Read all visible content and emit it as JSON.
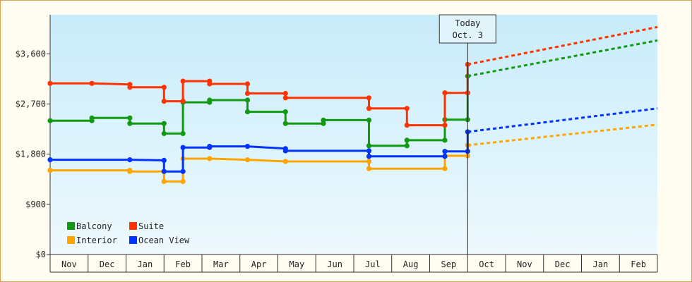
{
  "chart_data": {
    "type": "line",
    "title": "",
    "xlabel": "",
    "ylabel": "",
    "yticks": [
      "$0",
      "$900",
      "$1,800",
      "$2,700",
      "$3,600"
    ],
    "ylim": [
      0,
      4300
    ],
    "months": [
      "Nov",
      "Dec",
      "Jan",
      "Feb",
      "Mar",
      "Apr",
      "May",
      "Jun",
      "Jul",
      "Aug",
      "Sep",
      "Oct",
      "Nov",
      "Dec",
      "Jan",
      "Feb"
    ],
    "today": {
      "label": "Today",
      "date": "Oct. 3",
      "x": 11.0
    },
    "legend": {
      "placement": "bottom-left"
    },
    "colors": {
      "Balcony": "#119911",
      "Suite": "#ff3300",
      "Interior": "#ffa500",
      "Ocean View": "#0033ff",
      "background_top": "#c8ecfa",
      "background_bottom": "#eef9fd"
    },
    "series": [
      {
        "name": "Balcony",
        "color": "#119911",
        "points": [
          [
            0.0,
            2400
          ],
          [
            1.1,
            2400
          ],
          [
            1.1,
            2450
          ],
          [
            2.1,
            2450
          ],
          [
            2.1,
            2350
          ],
          [
            3.0,
            2350
          ],
          [
            3.0,
            2170
          ],
          [
            3.5,
            2170
          ],
          [
            3.5,
            2730
          ],
          [
            4.2,
            2730
          ],
          [
            4.2,
            2770
          ],
          [
            5.2,
            2770
          ],
          [
            5.2,
            2560
          ],
          [
            6.2,
            2560
          ],
          [
            6.2,
            2350
          ],
          [
            7.2,
            2350
          ],
          [
            7.2,
            2410
          ],
          [
            8.4,
            2410
          ],
          [
            8.4,
            1950
          ],
          [
            9.4,
            1950
          ],
          [
            9.4,
            2050
          ],
          [
            10.4,
            2050
          ],
          [
            10.4,
            2420
          ],
          [
            11.0,
            2420
          ],
          [
            11.0,
            3200
          ]
        ],
        "forecast": [
          [
            11.0,
            3200
          ],
          [
            16.0,
            3840
          ]
        ]
      },
      {
        "name": "Suite",
        "color": "#ff3300",
        "points": [
          [
            0.0,
            3070
          ],
          [
            1.1,
            3070
          ],
          [
            2.1,
            3050
          ],
          [
            2.1,
            3000
          ],
          [
            3.0,
            3000
          ],
          [
            3.0,
            2750
          ],
          [
            3.5,
            2750
          ],
          [
            3.5,
            3110
          ],
          [
            4.2,
            3110
          ],
          [
            4.2,
            3060
          ],
          [
            5.2,
            3060
          ],
          [
            5.2,
            2890
          ],
          [
            6.2,
            2890
          ],
          [
            6.2,
            2810
          ],
          [
            8.4,
            2810
          ],
          [
            8.4,
            2620
          ],
          [
            9.4,
            2620
          ],
          [
            9.4,
            2320
          ],
          [
            10.4,
            2320
          ],
          [
            10.4,
            2900
          ],
          [
            11.0,
            2900
          ],
          [
            11.0,
            3410
          ]
        ],
        "forecast": [
          [
            11.0,
            3410
          ],
          [
            16.0,
            4080
          ]
        ]
      },
      {
        "name": "Interior",
        "color": "#ffa500",
        "points": [
          [
            0.0,
            1510
          ],
          [
            2.1,
            1510
          ],
          [
            2.1,
            1490
          ],
          [
            3.0,
            1490
          ],
          [
            3.0,
            1310
          ],
          [
            3.5,
            1310
          ],
          [
            3.5,
            1720
          ],
          [
            4.2,
            1720
          ],
          [
            5.2,
            1700
          ],
          [
            6.2,
            1670
          ],
          [
            8.4,
            1670
          ],
          [
            8.4,
            1540
          ],
          [
            10.4,
            1540
          ],
          [
            10.4,
            1770
          ],
          [
            11.0,
            1770
          ],
          [
            11.0,
            1960
          ]
        ],
        "forecast": [
          [
            11.0,
            1960
          ],
          [
            16.0,
            2330
          ]
        ]
      },
      {
        "name": "Ocean View",
        "color": "#0033ff",
        "points": [
          [
            0.0,
            1700
          ],
          [
            2.1,
            1700
          ],
          [
            3.0,
            1690
          ],
          [
            3.0,
            1490
          ],
          [
            3.5,
            1490
          ],
          [
            3.5,
            1920
          ],
          [
            4.2,
            1920
          ],
          [
            4.2,
            1940
          ],
          [
            5.2,
            1940
          ],
          [
            6.2,
            1900
          ],
          [
            6.2,
            1860
          ],
          [
            8.4,
            1860
          ],
          [
            8.4,
            1760
          ],
          [
            10.4,
            1760
          ],
          [
            10.4,
            1850
          ],
          [
            11.0,
            1850
          ],
          [
            11.0,
            2200
          ]
        ],
        "forecast": [
          [
            11.0,
            2200
          ],
          [
            16.0,
            2620
          ]
        ]
      }
    ]
  }
}
